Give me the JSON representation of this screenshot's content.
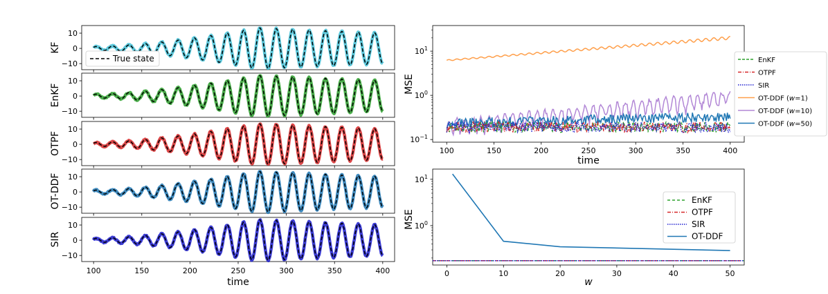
{
  "chart_data": [
    {
      "id": "left-stack",
      "type": "line",
      "description_panels": [
        "KF",
        "EnKF",
        "OTPF",
        "OT-DDF",
        "SIR"
      ],
      "xlabel": "time",
      "xlim": [
        100,
        400
      ],
      "xticks": [
        100,
        150,
        200,
        250,
        300,
        350,
        400
      ],
      "ylim": [
        -14,
        15
      ],
      "yticks": [
        -10,
        0,
        10
      ],
      "true_state": {
        "label": "True state",
        "color": "#000000",
        "style": "dashed"
      },
      "signal_model": {
        "amp_start": 1.2,
        "amp_end": 10,
        "amp_peak": 13.5,
        "peak_t": 270,
        "period": 17
      },
      "panels": [
        {
          "ylabel": "KF",
          "color": "#42c0d6",
          "legend": "True state"
        },
        {
          "ylabel": "EnKF",
          "color": "#2ca02c"
        },
        {
          "ylabel": "OTPF",
          "color": "#d62728"
        },
        {
          "ylabel": "OT-DDF",
          "color": "#1f77b4"
        },
        {
          "ylabel": "SIR",
          "color": "#1a1acc"
        }
      ]
    },
    {
      "id": "mse-time",
      "type": "line",
      "xlabel": "time",
      "ylabel": "MSE",
      "yscale": "log",
      "xlim": [
        100,
        400
      ],
      "xticks": [
        100,
        150,
        200,
        250,
        300,
        350,
        400
      ],
      "ytick_labels": [
        "10^-1",
        "10^0",
        "10^1"
      ],
      "ylim_log10": [
        -1.06,
        1.58
      ],
      "series": [
        {
          "name": "EnKF",
          "color": "#2ca02c",
          "style": "dashed",
          "approx_level": 0.19
        },
        {
          "name": "OTPF",
          "color": "#d62728",
          "style": "dashdot",
          "approx_level": 0.19
        },
        {
          "name": "SIR",
          "color": "#1f1fd0",
          "style": "dotted",
          "approx_level": 0.19
        },
        {
          "name": "OT-DDF (w=1)",
          "color": "#ff9f4a",
          "style": "solid",
          "start": 6.2,
          "end": 20
        },
        {
          "name": "OT-DDF (w=10)",
          "color": "#b287d6",
          "style": "solid",
          "start": 0.2,
          "end": 0.9
        },
        {
          "name": "OT-DDF (w=50)",
          "color": "#1f77b4",
          "style": "solid",
          "start": 0.22,
          "end": 0.33
        }
      ],
      "legend": [
        {
          "label": "EnKF"
        },
        {
          "label": "OTPF"
        },
        {
          "label": "SIR"
        },
        {
          "label": "OT-DDF (",
          "w": "w",
          "rest": "=1)"
        },
        {
          "label": "OT-DDF (",
          "w": "w",
          "rest": "=10)"
        },
        {
          "label": "OT-DDF (",
          "w": "w",
          "rest": "=50)"
        }
      ]
    },
    {
      "id": "mse-w",
      "type": "line",
      "xlabel": "w",
      "ylabel": "MSE",
      "yscale": "log",
      "xlim": [
        -2.5,
        52.5
      ],
      "xticks": [
        0,
        10,
        20,
        30,
        40,
        50
      ],
      "ytick_labels": [
        "10^0",
        "10^1"
      ],
      "ylim_log10": [
        -0.85,
        1.22
      ],
      "series": [
        {
          "name": "EnKF",
          "color": "#2ca02c",
          "style": "dashed",
          "x": [
            0,
            50
          ],
          "y": [
            0.175,
            0.175
          ]
        },
        {
          "name": "OTPF",
          "color": "#d62728",
          "style": "dashdot",
          "x": [
            0,
            50
          ],
          "y": [
            0.175,
            0.175
          ]
        },
        {
          "name": "SIR",
          "color": "#1f1fd0",
          "style": "dotted",
          "x": [
            0,
            50
          ],
          "y": [
            0.175,
            0.175
          ]
        },
        {
          "name": "OT-DDF",
          "color": "#1f77b4",
          "style": "solid",
          "x": [
            1,
            10,
            20,
            50
          ],
          "y": [
            13.0,
            0.46,
            0.35,
            0.29
          ]
        }
      ]
    }
  ],
  "colors": {
    "axis": "#000000",
    "background": "#ffffff"
  }
}
